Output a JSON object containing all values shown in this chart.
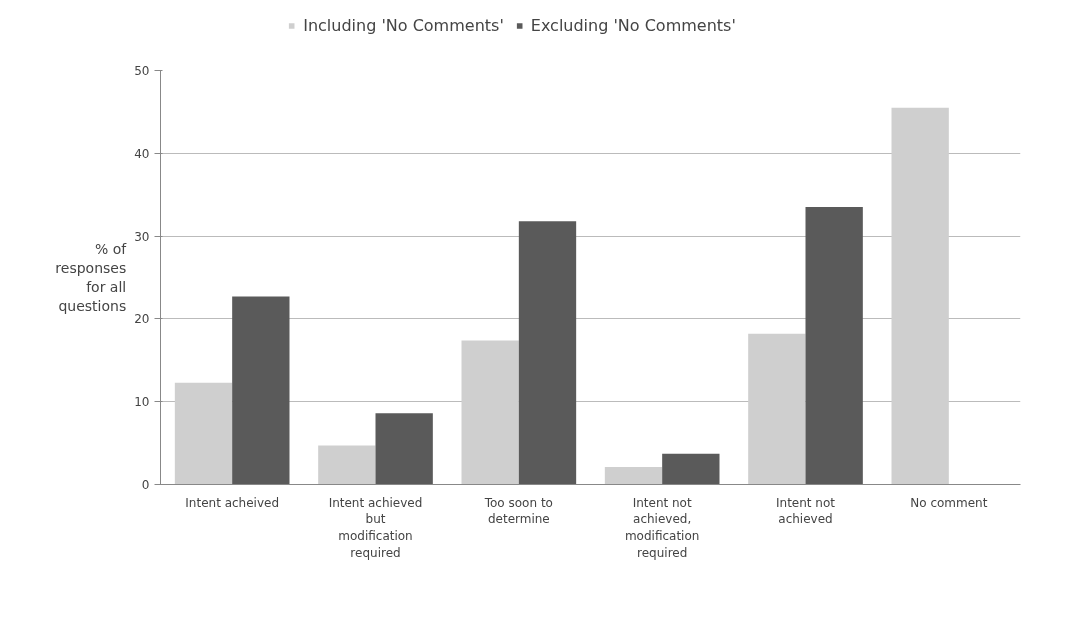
{
  "chart_data": {
    "type": "bar",
    "ylabel": "% of responses for all questions",
    "categories": [
      "Intent acheived",
      "Intent achieved but modification required",
      "Too soon to determine",
      "Intent not achieved, modification required",
      "Intent not achieved",
      "No comment"
    ],
    "series": [
      {
        "name": "Including 'No Comments'",
        "color": "#cfcfcf",
        "values": [
          12.3,
          4.7,
          17.4,
          2.1,
          18.2,
          45.5
        ]
      },
      {
        "name": "Excluding 'No Comments'",
        "color": "#5a5a5a",
        "values": [
          22.7,
          8.6,
          31.8,
          3.7,
          33.5,
          null
        ]
      }
    ],
    "ylim": [
      0,
      50
    ],
    "yticks": [
      0,
      10,
      20,
      30,
      40,
      50
    ],
    "grid": "y",
    "legend": "top"
  }
}
